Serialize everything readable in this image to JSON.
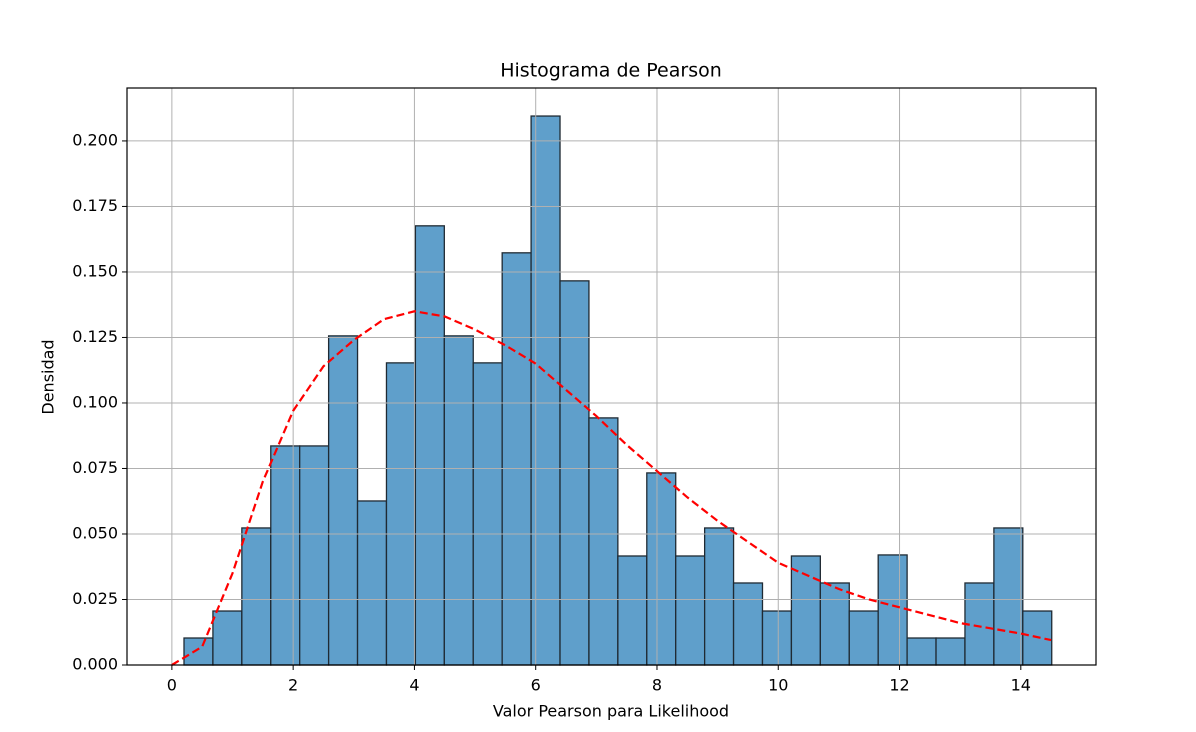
{
  "chart_data": {
    "type": "histogram",
    "title": "Histograma de Pearson",
    "x_label": "Valor Pearson para Likelihood",
    "y_label": "Densidad",
    "bins": [
      0.2,
      0.677,
      1.154,
      1.631,
      2.108,
      2.585,
      3.062,
      3.539,
      4.016,
      4.493,
      4.97,
      5.447,
      5.924,
      6.401,
      6.878,
      7.355,
      7.832,
      8.309,
      8.786,
      9.263,
      9.74,
      10.217,
      10.694,
      11.171,
      11.648,
      12.125,
      12.602,
      13.079,
      13.556,
      14.033,
      14.51
    ],
    "values": [
      0.0103,
      0.0206,
      0.0523,
      0.0836,
      0.0836,
      0.1256,
      0.0626,
      0.1153,
      0.1676,
      0.1256,
      0.1153,
      0.1573,
      0.2095,
      0.1466,
      0.0943,
      0.0416,
      0.0733,
      0.0416,
      0.0523,
      0.0313,
      0.0206,
      0.0416,
      0.0313,
      0.0206,
      0.042,
      0.0103,
      0.0103,
      0.0313,
      0.0523,
      0.0206
    ],
    "color": "#5f9fcb",
    "edge_color": "#1f2a33",
    "lines": [
      {
        "x": [
          0,
          0.5,
          1,
          1.5,
          2,
          2.5,
          3,
          3.5,
          4,
          4.5,
          5,
          5.5,
          6,
          6.5,
          7,
          7.5,
          8,
          8.5,
          9,
          9.5,
          10,
          10.5,
          11,
          11.5,
          12,
          12.5,
          13,
          13.5,
          14,
          14.5
        ],
        "values": [
          0,
          0.007,
          0.035,
          0.07,
          0.097,
          0.114,
          0.124,
          0.132,
          0.135,
          0.133,
          0.128,
          0.122,
          0.115,
          0.105,
          0.095,
          0.084,
          0.074,
          0.064,
          0.055,
          0.047,
          0.039,
          0.034,
          0.029,
          0.025,
          0.022,
          0.019,
          0.016,
          0.014,
          0.012,
          0.0095
        ],
        "color": "#ff0000",
        "dashed": true
      }
    ],
    "xlim": [
      -0.74,
      15.24
    ],
    "ylim": [
      0,
      0.2202
    ],
    "xticks": [
      0,
      2,
      4,
      6,
      8,
      10,
      12,
      14
    ],
    "yticks": [
      {
        "value": 0,
        "label": "0.000"
      },
      {
        "value": 0.025,
        "label": "0.025"
      },
      {
        "value": 0.05,
        "label": "0.050"
      },
      {
        "value": 0.075,
        "label": "0.075"
      },
      {
        "value": 0.1,
        "label": "0.100"
      },
      {
        "value": 0.125,
        "label": "0.125"
      },
      {
        "value": 0.15,
        "label": "0.150"
      },
      {
        "value": 0.175,
        "label": "0.175"
      },
      {
        "value": 0.2,
        "label": "0.200"
      }
    ],
    "grid": true
  }
}
